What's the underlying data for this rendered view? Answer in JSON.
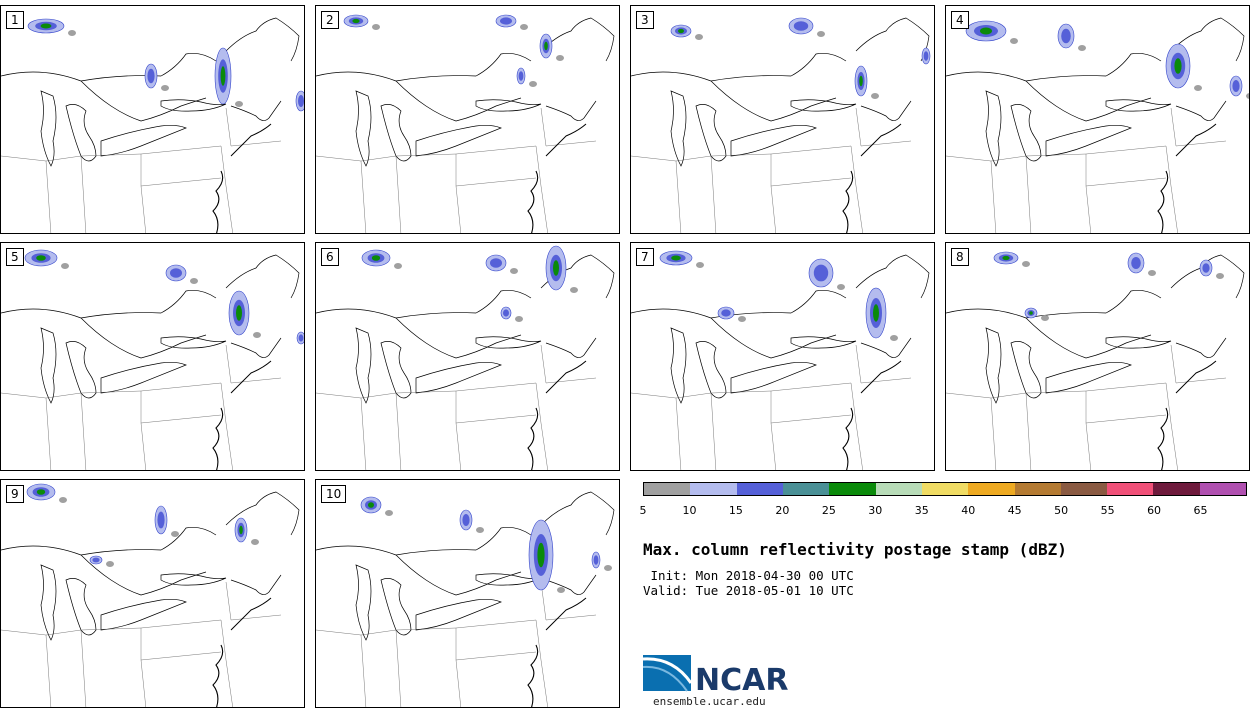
{
  "panels": [
    {
      "label": "1"
    },
    {
      "label": "2"
    },
    {
      "label": "3"
    },
    {
      "label": "4"
    },
    {
      "label": "5"
    },
    {
      "label": "6"
    },
    {
      "label": "7"
    },
    {
      "label": "8"
    },
    {
      "label": "9"
    },
    {
      "label": "10"
    }
  ],
  "colorbar": {
    "colors": [
      "#a0a0a0",
      "#b4bcee",
      "#5560d8",
      "#4a9096",
      "#0a8a0a",
      "#b8dcb8",
      "#f0dc64",
      "#eeaa22",
      "#b47a32",
      "#8a5a42",
      "#f05078",
      "#6e1a3c",
      "#b050b0"
    ],
    "tick_labels": [
      "5",
      "10",
      "15",
      "20",
      "25",
      "30",
      "35",
      "40",
      "45",
      "50",
      "55",
      "60",
      "65"
    ]
  },
  "title": "Max. column reflectivity postage stamp (dBZ)",
  "init_line": " Init: Mon 2018-04-30 00 UTC",
  "valid_line": "Valid: Tue 2018-05-01 10 UTC",
  "logo": {
    "name": "NCAR",
    "url": "ensemble.ucar.edu",
    "blue": "#0a6fb0",
    "navy": "#1a3a6a"
  }
}
